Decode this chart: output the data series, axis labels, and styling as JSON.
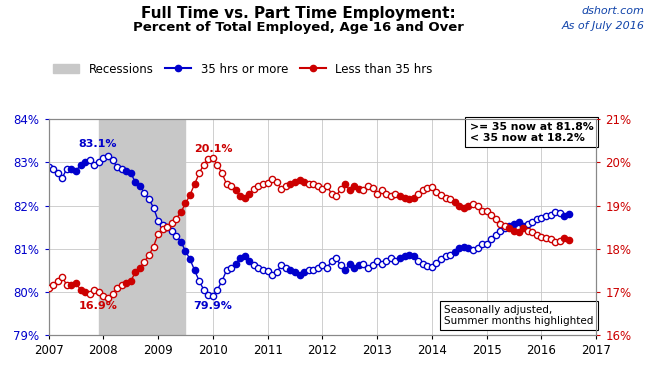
{
  "title_line1": "Full Time vs. Part Time Employment:",
  "title_line2": "Percent of Total Employed, Age 16 and Over",
  "source_text": "dshort.com\nAs of July 2016",
  "left_ylim": [
    79,
    84
  ],
  "right_ylim": [
    16,
    21
  ],
  "xlim": [
    2007,
    2017
  ],
  "left_yticks": [
    79,
    80,
    81,
    82,
    83,
    84
  ],
  "left_yticklabels": [
    "79%",
    "80%",
    "81%",
    "82%",
    "83%",
    "84%"
  ],
  "right_yticks": [
    16,
    17,
    18,
    19,
    20,
    21
  ],
  "right_yticklabels": [
    "16%",
    "17%",
    "18%",
    "19%",
    "20%",
    "21%"
  ],
  "xticks": [
    2007,
    2008,
    2009,
    2010,
    2011,
    2012,
    2013,
    2014,
    2015,
    2016,
    2017
  ],
  "recession_bands": [
    [
      2007.917,
      2009.5
    ]
  ],
  "blue_color": "#0000CC",
  "red_color": "#CC0000",
  "recession_color": "#C8C8C8",
  "box1_text": ">= 35 now at 81.8%\n< 35 now at 18.2%",
  "box2_text": "Seasonally adjusted,\nSummer months highlighted",
  "blue_data": [
    [
      2007.0,
      82.9
    ],
    [
      2007.083,
      82.85
    ],
    [
      2007.167,
      82.75
    ],
    [
      2007.25,
      82.65
    ],
    [
      2007.333,
      82.85
    ],
    [
      2007.417,
      82.85
    ],
    [
      2007.5,
      82.8
    ],
    [
      2007.583,
      82.95
    ],
    [
      2007.667,
      83.0
    ],
    [
      2007.75,
      83.05
    ],
    [
      2007.833,
      82.95
    ],
    [
      2007.917,
      83.0
    ],
    [
      2008.0,
      83.1
    ],
    [
      2008.083,
      83.15
    ],
    [
      2008.167,
      83.05
    ],
    [
      2008.25,
      82.9
    ],
    [
      2008.333,
      82.85
    ],
    [
      2008.417,
      82.8
    ],
    [
      2008.5,
      82.75
    ],
    [
      2008.583,
      82.55
    ],
    [
      2008.667,
      82.45
    ],
    [
      2008.75,
      82.3
    ],
    [
      2008.833,
      82.15
    ],
    [
      2008.917,
      81.95
    ],
    [
      2009.0,
      81.65
    ],
    [
      2009.083,
      81.55
    ],
    [
      2009.167,
      81.5
    ],
    [
      2009.25,
      81.4
    ],
    [
      2009.333,
      81.3
    ],
    [
      2009.417,
      81.15
    ],
    [
      2009.5,
      80.95
    ],
    [
      2009.583,
      80.75
    ],
    [
      2009.667,
      80.5
    ],
    [
      2009.75,
      80.25
    ],
    [
      2009.833,
      80.05
    ],
    [
      2009.917,
      79.92
    ],
    [
      2010.0,
      79.9
    ],
    [
      2010.083,
      80.05
    ],
    [
      2010.167,
      80.25
    ],
    [
      2010.25,
      80.5
    ],
    [
      2010.333,
      80.55
    ],
    [
      2010.417,
      80.65
    ],
    [
      2010.5,
      80.78
    ],
    [
      2010.583,
      80.82
    ],
    [
      2010.667,
      80.72
    ],
    [
      2010.75,
      80.62
    ],
    [
      2010.833,
      80.55
    ],
    [
      2010.917,
      80.5
    ],
    [
      2011.0,
      80.48
    ],
    [
      2011.083,
      80.38
    ],
    [
      2011.167,
      80.45
    ],
    [
      2011.25,
      80.62
    ],
    [
      2011.333,
      80.55
    ],
    [
      2011.417,
      80.5
    ],
    [
      2011.5,
      80.45
    ],
    [
      2011.583,
      80.4
    ],
    [
      2011.667,
      80.45
    ],
    [
      2011.75,
      80.5
    ],
    [
      2011.833,
      80.5
    ],
    [
      2011.917,
      80.55
    ],
    [
      2012.0,
      80.62
    ],
    [
      2012.083,
      80.55
    ],
    [
      2012.167,
      80.72
    ],
    [
      2012.25,
      80.78
    ],
    [
      2012.333,
      80.62
    ],
    [
      2012.417,
      80.5
    ],
    [
      2012.5,
      80.65
    ],
    [
      2012.583,
      80.55
    ],
    [
      2012.667,
      80.62
    ],
    [
      2012.75,
      80.65
    ],
    [
      2012.833,
      80.55
    ],
    [
      2012.917,
      80.62
    ],
    [
      2013.0,
      80.72
    ],
    [
      2013.083,
      80.65
    ],
    [
      2013.167,
      80.72
    ],
    [
      2013.25,
      80.78
    ],
    [
      2013.333,
      80.72
    ],
    [
      2013.417,
      80.78
    ],
    [
      2013.5,
      80.82
    ],
    [
      2013.583,
      80.85
    ],
    [
      2013.667,
      80.82
    ],
    [
      2013.75,
      80.72
    ],
    [
      2013.833,
      80.65
    ],
    [
      2013.917,
      80.6
    ],
    [
      2014.0,
      80.58
    ],
    [
      2014.083,
      80.68
    ],
    [
      2014.167,
      80.75
    ],
    [
      2014.25,
      80.82
    ],
    [
      2014.333,
      80.85
    ],
    [
      2014.417,
      80.92
    ],
    [
      2014.5,
      81.02
    ],
    [
      2014.583,
      81.05
    ],
    [
      2014.667,
      81.02
    ],
    [
      2014.75,
      80.97
    ],
    [
      2014.833,
      81.02
    ],
    [
      2014.917,
      81.12
    ],
    [
      2015.0,
      81.12
    ],
    [
      2015.083,
      81.22
    ],
    [
      2015.167,
      81.32
    ],
    [
      2015.25,
      81.42
    ],
    [
      2015.333,
      81.48
    ],
    [
      2015.417,
      81.52
    ],
    [
      2015.5,
      81.58
    ],
    [
      2015.583,
      81.62
    ],
    [
      2015.667,
      81.52
    ],
    [
      2015.75,
      81.58
    ],
    [
      2015.833,
      81.62
    ],
    [
      2015.917,
      81.68
    ],
    [
      2016.0,
      81.72
    ],
    [
      2016.083,
      81.75
    ],
    [
      2016.167,
      81.78
    ],
    [
      2016.25,
      81.85
    ],
    [
      2016.333,
      81.82
    ],
    [
      2016.417,
      81.75
    ],
    [
      2016.5,
      81.8
    ]
  ],
  "red_data": [
    [
      2007.0,
      17.1
    ],
    [
      2007.083,
      17.15
    ],
    [
      2007.167,
      17.25
    ],
    [
      2007.25,
      17.35
    ],
    [
      2007.333,
      17.15
    ],
    [
      2007.417,
      17.15
    ],
    [
      2007.5,
      17.2
    ],
    [
      2007.583,
      17.05
    ],
    [
      2007.667,
      17.0
    ],
    [
      2007.75,
      16.95
    ],
    [
      2007.833,
      17.05
    ],
    [
      2007.917,
      17.0
    ],
    [
      2008.0,
      16.9
    ],
    [
      2008.083,
      16.85
    ],
    [
      2008.167,
      16.95
    ],
    [
      2008.25,
      17.1
    ],
    [
      2008.333,
      17.15
    ],
    [
      2008.417,
      17.2
    ],
    [
      2008.5,
      17.25
    ],
    [
      2008.583,
      17.45
    ],
    [
      2008.667,
      17.55
    ],
    [
      2008.75,
      17.7
    ],
    [
      2008.833,
      17.85
    ],
    [
      2008.917,
      18.05
    ],
    [
      2009.0,
      18.35
    ],
    [
      2009.083,
      18.45
    ],
    [
      2009.167,
      18.5
    ],
    [
      2009.25,
      18.6
    ],
    [
      2009.333,
      18.7
    ],
    [
      2009.417,
      18.85
    ],
    [
      2009.5,
      19.05
    ],
    [
      2009.583,
      19.25
    ],
    [
      2009.667,
      19.5
    ],
    [
      2009.75,
      19.75
    ],
    [
      2009.833,
      19.95
    ],
    [
      2009.917,
      20.08
    ],
    [
      2010.0,
      20.1
    ],
    [
      2010.083,
      19.95
    ],
    [
      2010.167,
      19.75
    ],
    [
      2010.25,
      19.5
    ],
    [
      2010.333,
      19.45
    ],
    [
      2010.417,
      19.35
    ],
    [
      2010.5,
      19.22
    ],
    [
      2010.583,
      19.18
    ],
    [
      2010.667,
      19.28
    ],
    [
      2010.75,
      19.38
    ],
    [
      2010.833,
      19.45
    ],
    [
      2010.917,
      19.5
    ],
    [
      2011.0,
      19.52
    ],
    [
      2011.083,
      19.62
    ],
    [
      2011.167,
      19.55
    ],
    [
      2011.25,
      19.38
    ],
    [
      2011.333,
      19.45
    ],
    [
      2011.417,
      19.5
    ],
    [
      2011.5,
      19.55
    ],
    [
      2011.583,
      19.6
    ],
    [
      2011.667,
      19.55
    ],
    [
      2011.75,
      19.5
    ],
    [
      2011.833,
      19.5
    ],
    [
      2011.917,
      19.45
    ],
    [
      2012.0,
      19.38
    ],
    [
      2012.083,
      19.45
    ],
    [
      2012.167,
      19.28
    ],
    [
      2012.25,
      19.22
    ],
    [
      2012.333,
      19.38
    ],
    [
      2012.417,
      19.5
    ],
    [
      2012.5,
      19.35
    ],
    [
      2012.583,
      19.45
    ],
    [
      2012.667,
      19.38
    ],
    [
      2012.75,
      19.35
    ],
    [
      2012.833,
      19.45
    ],
    [
      2012.917,
      19.4
    ],
    [
      2013.0,
      19.28
    ],
    [
      2013.083,
      19.35
    ],
    [
      2013.167,
      19.28
    ],
    [
      2013.25,
      19.22
    ],
    [
      2013.333,
      19.28
    ],
    [
      2013.417,
      19.22
    ],
    [
      2013.5,
      19.18
    ],
    [
      2013.583,
      19.15
    ],
    [
      2013.667,
      19.18
    ],
    [
      2013.75,
      19.28
    ],
    [
      2013.833,
      19.35
    ],
    [
      2013.917,
      19.4
    ],
    [
      2014.0,
      19.42
    ],
    [
      2014.083,
      19.32
    ],
    [
      2014.167,
      19.25
    ],
    [
      2014.25,
      19.18
    ],
    [
      2014.333,
      19.15
    ],
    [
      2014.417,
      19.08
    ],
    [
      2014.5,
      18.98
    ],
    [
      2014.583,
      18.95
    ],
    [
      2014.667,
      18.98
    ],
    [
      2014.75,
      19.03
    ],
    [
      2014.833,
      18.98
    ],
    [
      2014.917,
      18.88
    ],
    [
      2015.0,
      18.88
    ],
    [
      2015.083,
      18.78
    ],
    [
      2015.167,
      18.68
    ],
    [
      2015.25,
      18.58
    ],
    [
      2015.333,
      18.52
    ],
    [
      2015.417,
      18.48
    ],
    [
      2015.5,
      18.42
    ],
    [
      2015.583,
      18.38
    ],
    [
      2015.667,
      18.48
    ],
    [
      2015.75,
      18.42
    ],
    [
      2015.833,
      18.38
    ],
    [
      2015.917,
      18.32
    ],
    [
      2016.0,
      18.28
    ],
    [
      2016.083,
      18.25
    ],
    [
      2016.167,
      18.22
    ],
    [
      2016.25,
      18.15
    ],
    [
      2016.333,
      18.18
    ],
    [
      2016.417,
      18.25
    ],
    [
      2016.5,
      18.2
    ]
  ],
  "summer_months": [
    0.417,
    0.5,
    0.583,
    0.667
  ]
}
